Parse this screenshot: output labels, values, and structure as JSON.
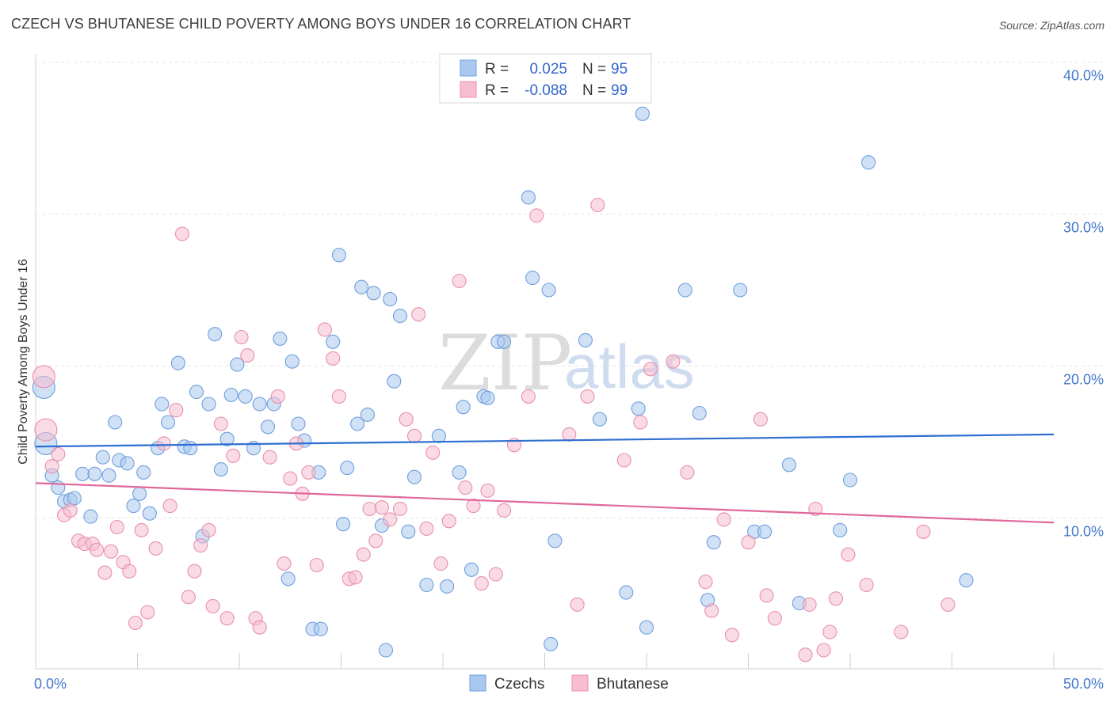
{
  "title": "CZECH VS BHUTANESE CHILD POVERTY AMONG BOYS UNDER 16 CORRELATION CHART",
  "source": "Source: ZipAtlas.com",
  "watermark": {
    "zip": "ZIP",
    "atlas": "atlas"
  },
  "chart_data": {
    "type": "scatter",
    "ylabel": "Child Poverty Among Boys Under 16",
    "xlim": [
      0,
      50
    ],
    "ylim": [
      0,
      40
    ],
    "x_ticks": [
      "0.0%",
      "50.0%"
    ],
    "y_ticks": [
      {
        "value": 10,
        "label": "10.0%"
      },
      {
        "value": 20,
        "label": "20.0%"
      },
      {
        "value": 30,
        "label": "30.0%"
      },
      {
        "value": 40,
        "label": "40.0%"
      }
    ],
    "legend": {
      "placement": "top-center",
      "entries": [
        {
          "r_label": "R =",
          "r_value": "0.025",
          "n_label": "N =",
          "n_value": "95"
        },
        {
          "r_label": "R =",
          "r_value": "-0.088",
          "n_label": "N =",
          "n_value": "99"
        }
      ]
    },
    "series": [
      {
        "name": "Czechs",
        "color": "#a9c8ef",
        "edge": "#6f9fdc",
        "trend_color": "#2f6fd0",
        "trend": [
          [
            0,
            14.7
          ],
          [
            50,
            15.5
          ]
        ],
        "points": [
          [
            0.4,
            18.6
          ],
          [
            0.5,
            14.9
          ],
          [
            0.8,
            12.8
          ],
          [
            1.1,
            12.0
          ],
          [
            1.4,
            11.1
          ],
          [
            1.7,
            11.2
          ],
          [
            1.9,
            11.3
          ],
          [
            2.3,
            12.9
          ],
          [
            2.7,
            10.1
          ],
          [
            2.9,
            12.9
          ],
          [
            3.3,
            14.0
          ],
          [
            3.6,
            12.8
          ],
          [
            3.9,
            16.3
          ],
          [
            4.1,
            13.8
          ],
          [
            4.5,
            13.6
          ],
          [
            4.8,
            10.8
          ],
          [
            5.1,
            11.6
          ],
          [
            5.3,
            13.0
          ],
          [
            5.6,
            10.3
          ],
          [
            6.0,
            14.6
          ],
          [
            6.2,
            17.5
          ],
          [
            6.5,
            16.3
          ],
          [
            7.0,
            20.2
          ],
          [
            7.3,
            14.7
          ],
          [
            7.6,
            14.6
          ],
          [
            7.9,
            18.3
          ],
          [
            8.2,
            8.8
          ],
          [
            8.5,
            17.5
          ],
          [
            8.8,
            22.1
          ],
          [
            9.1,
            13.2
          ],
          [
            9.4,
            15.2
          ],
          [
            9.6,
            18.1
          ],
          [
            9.9,
            20.1
          ],
          [
            10.3,
            18.0
          ],
          [
            10.7,
            14.6
          ],
          [
            11.0,
            17.5
          ],
          [
            11.4,
            16.0
          ],
          [
            11.7,
            17.5
          ],
          [
            12.0,
            21.8
          ],
          [
            12.4,
            6.0
          ],
          [
            12.6,
            20.3
          ],
          [
            12.9,
            16.2
          ],
          [
            13.2,
            15.1
          ],
          [
            13.6,
            2.7
          ],
          [
            13.9,
            13.0
          ],
          [
            14.0,
            2.7
          ],
          [
            14.6,
            21.6
          ],
          [
            14.9,
            27.3
          ],
          [
            15.1,
            9.6
          ],
          [
            15.3,
            13.3
          ],
          [
            15.8,
            16.2
          ],
          [
            16.0,
            25.2
          ],
          [
            16.3,
            16.8
          ],
          [
            16.6,
            24.8
          ],
          [
            17.0,
            9.5
          ],
          [
            17.2,
            1.3
          ],
          [
            17.4,
            24.4
          ],
          [
            17.6,
            19.0
          ],
          [
            17.9,
            23.3
          ],
          [
            18.3,
            9.1
          ],
          [
            18.6,
            12.7
          ],
          [
            19.2,
            5.6
          ],
          [
            19.8,
            15.4
          ],
          [
            20.2,
            5.5
          ],
          [
            20.8,
            13.0
          ],
          [
            21.0,
            17.3
          ],
          [
            21.4,
            6.6
          ],
          [
            22.0,
            18.0
          ],
          [
            22.2,
            17.9
          ],
          [
            22.7,
            21.6
          ],
          [
            23.0,
            21.6
          ],
          [
            24.2,
            31.1
          ],
          [
            24.4,
            25.8
          ],
          [
            25.2,
            25.0
          ],
          [
            25.3,
            1.7
          ],
          [
            25.5,
            8.5
          ],
          [
            27.0,
            21.7
          ],
          [
            27.7,
            16.5
          ],
          [
            29.0,
            5.1
          ],
          [
            29.6,
            17.2
          ],
          [
            29.8,
            36.6
          ],
          [
            30.0,
            2.8
          ],
          [
            31.9,
            25.0
          ],
          [
            32.6,
            16.9
          ],
          [
            33.0,
            4.6
          ],
          [
            33.3,
            8.4
          ],
          [
            34.6,
            25.0
          ],
          [
            35.3,
            9.1
          ],
          [
            35.8,
            9.1
          ],
          [
            37.0,
            13.5
          ],
          [
            37.5,
            4.4
          ],
          [
            39.5,
            9.2
          ],
          [
            40.0,
            12.5
          ],
          [
            40.9,
            33.4
          ],
          [
            45.7,
            5.9
          ]
        ]
      },
      {
        "name": "Bhutanese",
        "color": "#f6bed0",
        "edge": "#e890ac",
        "trend_color": "#e0689a",
        "trend": [
          [
            0,
            12.3
          ],
          [
            50,
            9.7
          ]
        ],
        "points": [
          [
            0.4,
            19.3
          ],
          [
            0.5,
            15.8
          ],
          [
            0.8,
            13.4
          ],
          [
            1.1,
            14.2
          ],
          [
            1.4,
            10.2
          ],
          [
            1.7,
            10.5
          ],
          [
            2.1,
            8.5
          ],
          [
            2.4,
            8.3
          ],
          [
            2.8,
            8.3
          ],
          [
            3.0,
            7.9
          ],
          [
            3.4,
            6.4
          ],
          [
            3.7,
            7.8
          ],
          [
            4.0,
            9.4
          ],
          [
            4.3,
            7.1
          ],
          [
            4.6,
            6.5
          ],
          [
            4.9,
            3.1
          ],
          [
            5.2,
            9.2
          ],
          [
            5.5,
            3.8
          ],
          [
            5.9,
            8.0
          ],
          [
            6.3,
            14.9
          ],
          [
            6.6,
            10.8
          ],
          [
            6.9,
            17.1
          ],
          [
            7.2,
            28.7
          ],
          [
            7.5,
            4.8
          ],
          [
            7.8,
            6.5
          ],
          [
            8.1,
            8.2
          ],
          [
            8.5,
            9.2
          ],
          [
            8.7,
            4.2
          ],
          [
            9.1,
            16.2
          ],
          [
            9.4,
            3.4
          ],
          [
            9.7,
            14.1
          ],
          [
            10.1,
            21.9
          ],
          [
            10.4,
            20.7
          ],
          [
            10.8,
            3.4
          ],
          [
            11.0,
            2.8
          ],
          [
            11.5,
            14.0
          ],
          [
            11.9,
            18.0
          ],
          [
            12.2,
            7.0
          ],
          [
            12.5,
            12.6
          ],
          [
            12.8,
            14.9
          ],
          [
            13.1,
            11.6
          ],
          [
            13.4,
            13.0
          ],
          [
            13.8,
            6.9
          ],
          [
            14.2,
            22.4
          ],
          [
            14.6,
            20.5
          ],
          [
            14.9,
            18.0
          ],
          [
            15.4,
            6.0
          ],
          [
            15.7,
            6.1
          ],
          [
            16.1,
            7.6
          ],
          [
            16.4,
            10.6
          ],
          [
            16.7,
            8.5
          ],
          [
            17.0,
            10.7
          ],
          [
            17.4,
            9.9
          ],
          [
            17.9,
            10.6
          ],
          [
            18.2,
            16.5
          ],
          [
            18.6,
            15.4
          ],
          [
            18.8,
            23.4
          ],
          [
            19.2,
            9.3
          ],
          [
            19.5,
            14.3
          ],
          [
            19.9,
            7.0
          ],
          [
            20.3,
            9.8
          ],
          [
            20.8,
            25.6
          ],
          [
            21.1,
            12.0
          ],
          [
            21.5,
            10.8
          ],
          [
            21.9,
            5.7
          ],
          [
            22.2,
            11.8
          ],
          [
            22.6,
            6.3
          ],
          [
            23.0,
            10.5
          ],
          [
            23.5,
            14.8
          ],
          [
            24.2,
            18.0
          ],
          [
            24.6,
            29.9
          ],
          [
            26.2,
            15.5
          ],
          [
            26.6,
            4.3
          ],
          [
            27.1,
            18.0
          ],
          [
            27.6,
            30.6
          ],
          [
            28.9,
            13.8
          ],
          [
            29.7,
            16.3
          ],
          [
            30.2,
            19.8
          ],
          [
            31.3,
            20.3
          ],
          [
            32.0,
            13.0
          ],
          [
            32.9,
            5.8
          ],
          [
            33.2,
            3.9
          ],
          [
            33.8,
            9.9
          ],
          [
            34.2,
            2.3
          ],
          [
            35.0,
            8.4
          ],
          [
            35.6,
            16.5
          ],
          [
            35.9,
            4.9
          ],
          [
            36.3,
            3.4
          ],
          [
            37.8,
            1.0
          ],
          [
            38.0,
            4.3
          ],
          [
            38.3,
            10.6
          ],
          [
            38.7,
            1.3
          ],
          [
            39.0,
            2.5
          ],
          [
            39.3,
            4.7
          ],
          [
            39.9,
            7.6
          ],
          [
            40.8,
            5.6
          ],
          [
            42.5,
            2.5
          ],
          [
            43.6,
            9.1
          ],
          [
            44.8,
            4.3
          ]
        ]
      }
    ]
  }
}
